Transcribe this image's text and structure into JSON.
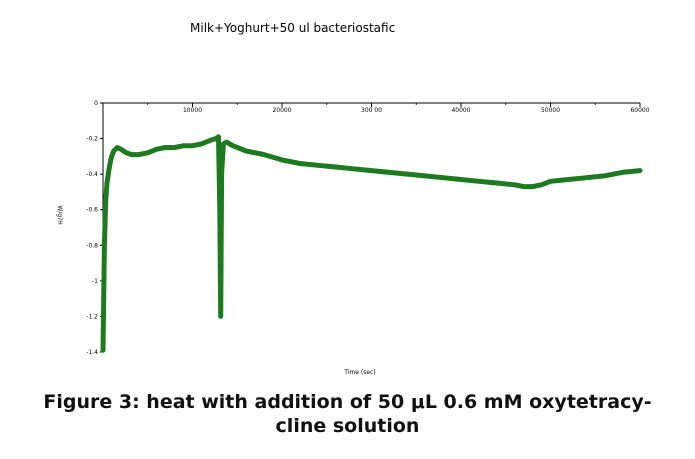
{
  "chart_data": {
    "type": "line",
    "title": "Milk+Yoghurt+50 ul bacteriostafic",
    "xlabel": "Time (sec)",
    "ylabel": "W/g?H",
    "xlim": [
      0,
      60000
    ],
    "ylim": [
      -1.4,
      0
    ],
    "x_ticks": [
      {
        "value": 10000,
        "label": "10000"
      },
      {
        "value": 20000,
        "label": "20000"
      },
      {
        "value": 30000,
        "label": "300 00"
      },
      {
        "value": 40000,
        "label": "40000"
      },
      {
        "value": 50000,
        "label": "50000"
      },
      {
        "value": 60000,
        "label": "60000"
      }
    ],
    "y_ticks": [
      {
        "value": 0,
        "label": "0"
      },
      {
        "value": -0.2,
        "label": "-0.2"
      },
      {
        "value": -0.4,
        "label": "-0.4"
      },
      {
        "value": -0.6,
        "label": "-0.6"
      },
      {
        "value": -0.8,
        "label": "-0.8"
      },
      {
        "value": -1,
        "label": "-1"
      },
      {
        "value": -1.2,
        "label": "-1.2"
      },
      {
        "value": -1.4,
        "label": "-1.4"
      }
    ],
    "grid": false,
    "series": [
      {
        "color": "#1e7a1e",
        "points": [
          [
            0,
            -1.39
          ],
          [
            80,
            -1.1
          ],
          [
            160,
            -0.8
          ],
          [
            300,
            -0.55
          ],
          [
            450,
            -0.45
          ],
          [
            650,
            -0.38
          ],
          [
            900,
            -0.31
          ],
          [
            1200,
            -0.27
          ],
          [
            1600,
            -0.25
          ],
          [
            2000,
            -0.26
          ],
          [
            2600,
            -0.28
          ],
          [
            3200,
            -0.29
          ],
          [
            4000,
            -0.29
          ],
          [
            5000,
            -0.28
          ],
          [
            6000,
            -0.26
          ],
          [
            7000,
            -0.25
          ],
          [
            8000,
            -0.25
          ],
          [
            9000,
            -0.24
          ],
          [
            10000,
            -0.24
          ],
          [
            11000,
            -0.23
          ],
          [
            12000,
            -0.21
          ],
          [
            12600,
            -0.2
          ],
          [
            12900,
            -0.19
          ],
          [
            13050,
            -0.6
          ],
          [
            13150,
            -1.2
          ],
          [
            13250,
            -0.4
          ],
          [
            13450,
            -0.23
          ],
          [
            13800,
            -0.22
          ],
          [
            14500,
            -0.24
          ],
          [
            16000,
            -0.27
          ],
          [
            18000,
            -0.29
          ],
          [
            20000,
            -0.32
          ],
          [
            22000,
            -0.34
          ],
          [
            24000,
            -0.35
          ],
          [
            26000,
            -0.36
          ],
          [
            28000,
            -0.37
          ],
          [
            30000,
            -0.38
          ],
          [
            32000,
            -0.39
          ],
          [
            34000,
            -0.4
          ],
          [
            36000,
            -0.41
          ],
          [
            38000,
            -0.42
          ],
          [
            40000,
            -0.43
          ],
          [
            42000,
            -0.44
          ],
          [
            44000,
            -0.45
          ],
          [
            46000,
            -0.46
          ],
          [
            47000,
            -0.47
          ],
          [
            48000,
            -0.47
          ],
          [
            49000,
            -0.46
          ],
          [
            50000,
            -0.44
          ],
          [
            52000,
            -0.43
          ],
          [
            54000,
            -0.42
          ],
          [
            56000,
            -0.41
          ],
          [
            58000,
            -0.39
          ],
          [
            60000,
            -0.38
          ]
        ]
      }
    ]
  },
  "caption": {
    "line1": "Figure 3: heat with addition of 50 μL 0.6 mM oxytetracy-",
    "line2": "cline solution"
  }
}
